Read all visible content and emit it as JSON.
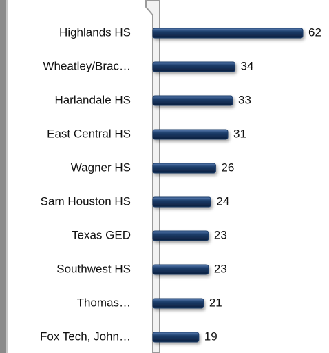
{
  "chart_data": {
    "type": "bar",
    "orientation": "horizontal",
    "color": "#1d3d6b",
    "categories": [
      "Highlands HS",
      "Wheatley/Brac…",
      "Harlandale HS",
      "East Central HS",
      "Wagner HS",
      "Sam Houston HS",
      "Texas GED",
      "Southwest HS",
      "Thomas…",
      "Fox Tech, John…"
    ],
    "values": [
      62,
      34,
      33,
      31,
      26,
      24,
      23,
      23,
      21,
      19
    ]
  }
}
